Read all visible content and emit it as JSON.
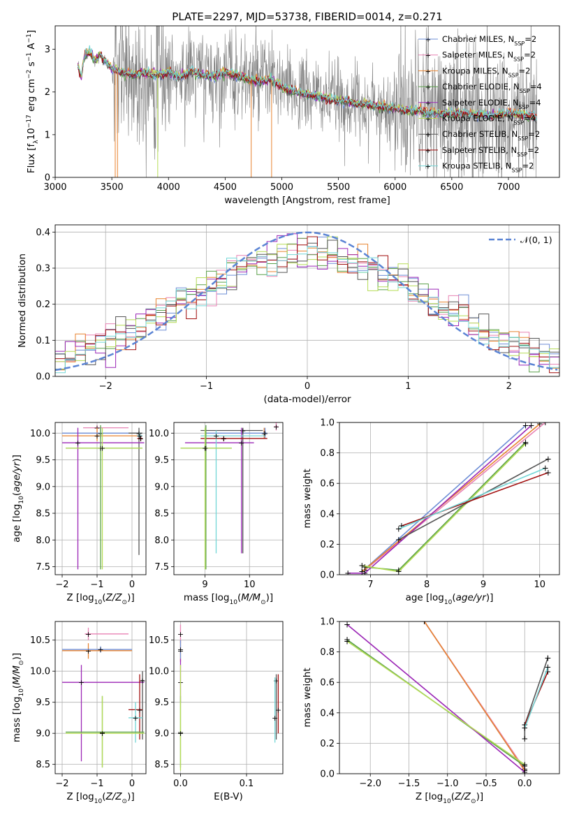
{
  "figure_title": "PLATE=2297, MJD=53738, FIBERID=0014, z=0.271",
  "models": [
    {
      "name": "Chabrier MILES",
      "nssp": "2",
      "color": "#6d8dd6"
    },
    {
      "name": "Salpeter MILES",
      "nssp": "2",
      "color": "#e882b4"
    },
    {
      "name": "Kroupa MILES",
      "nssp": "2",
      "color": "#e8832f"
    },
    {
      "name": "Chabrier ELODIE",
      "nssp": "4",
      "color": "#5aa04a"
    },
    {
      "name": "Salpeter ELODIE",
      "nssp": "4",
      "color": "#9b26b6"
    },
    {
      "name": "Kroupa ELODIE",
      "nssp": "4",
      "color": "#b5dc56"
    },
    {
      "name": "Chabrier STELIB",
      "nssp": "2",
      "color": "#555555"
    },
    {
      "name": "Salpeter STELIB",
      "nssp": "2",
      "color": "#a00c0c"
    },
    {
      "name": "Kroupa STELIB",
      "nssp": "2",
      "color": "#72d6d6"
    }
  ],
  "chart_data": [
    {
      "id": "spectrum",
      "type": "line",
      "xlabel": "wavelength [Angstrom, rest frame]",
      "ylabel": "Flux [f_λ 10^-17 erg cm^-2 s^-1 A^-1]",
      "xlim": [
        3000,
        7450
      ],
      "ylim": [
        0,
        3.55
      ],
      "xticks": [
        3000,
        3500,
        4000,
        4500,
        5000,
        5500,
        6000,
        6500,
        7000
      ],
      "yticks": [
        0,
        1,
        2,
        3
      ],
      "grid": false,
      "legend_position": "top-right",
      "observed_color": "#808080",
      "continuum": {
        "x": [
          3200,
          3230,
          3260,
          3300,
          3350,
          3400,
          3500,
          3600,
          3700,
          3800,
          3900,
          4000,
          4100,
          4200,
          4300,
          4400,
          4500,
          4600,
          4700,
          4800,
          4900,
          5000,
          5200,
          5400,
          5600,
          5800,
          6000,
          6200,
          6400,
          6600,
          6800,
          7000,
          7200,
          7250
        ],
        "y": [
          2.6,
          2.35,
          2.85,
          2.95,
          2.75,
          2.85,
          2.55,
          2.45,
          2.4,
          2.45,
          2.4,
          2.45,
          2.35,
          2.5,
          2.4,
          2.35,
          2.45,
          2.4,
          2.3,
          2.25,
          2.3,
          2.1,
          1.95,
          1.85,
          1.75,
          1.7,
          1.6,
          1.55,
          1.5,
          1.5,
          1.45,
          1.5,
          1.45,
          1.4
        ]
      }
    },
    {
      "id": "residuals",
      "type": "line",
      "xlabel": "(data-model)/error",
      "ylabel": "Normed distribution",
      "xlim": [
        -2.5,
        2.5
      ],
      "ylim": [
        0,
        0.42
      ],
      "xticks": [
        -2,
        -1,
        0,
        1,
        2
      ],
      "yticks": [
        0.0,
        0.1,
        0.2,
        0.3,
        0.4
      ],
      "grid": true,
      "legend_position": "top-right",
      "reference_curve": {
        "label": "𝒩(0, 1)",
        "color": "#5b84d4",
        "mean": 0,
        "sigma": 1
      }
    },
    {
      "id": "age_vs_Z",
      "type": "scatter",
      "xlabel": "Z [log10(Z/Z⊙)]",
      "ylabel": "age [log10(age/yr)]",
      "xlim": [
        -2.2,
        0.4
      ],
      "ylim": [
        7.35,
        10.2
      ],
      "xticks": [
        -2,
        -1,
        0
      ],
      "yticks": [
        7.5,
        8.0,
        8.5,
        9.0,
        9.5,
        10.0
      ],
      "grid": true,
      "errorbars": [
        {
          "c": "#e882b4",
          "x": -1.0,
          "xe": [
            -1.4,
            -0.1
          ],
          "y": 10.1,
          "ye": [
            10.0,
            10.15
          ]
        },
        {
          "c": "#e8832f",
          "x": -1.0,
          "xe": [
            -2.0,
            0.15
          ],
          "y": 9.95,
          "ye": [
            9.85,
            10.1
          ]
        },
        {
          "c": "#6d8dd6",
          "x": -0.9,
          "xe": [
            -2.0,
            0.2
          ],
          "y": 10.0,
          "ye": [
            9.9,
            10.1
          ]
        },
        {
          "c": "#555555",
          "x": 0.2,
          "xe": [
            -0.1,
            0.3
          ],
          "y": 10.0,
          "ye": [
            7.72,
            10.1
          ]
        },
        {
          "c": "#9b26b6",
          "x": -1.55,
          "xe": [
            -2.0,
            0.35
          ],
          "y": 9.82,
          "ye": [
            7.45,
            10.1
          ]
        },
        {
          "c": "#a00c0c",
          "x": 0.25,
          "xe": [
            0.15,
            0.3
          ],
          "y": 9.9,
          "ye": [
            9.85,
            9.95
          ]
        },
        {
          "c": "#72d6d6",
          "x": 0.22,
          "xe": [
            0.15,
            0.3
          ],
          "y": 9.95,
          "ye": [
            9.9,
            10.0
          ]
        },
        {
          "c": "#5aa04a",
          "x": -0.9,
          "xe": [
            -1.9,
            0.3
          ],
          "y": 9.72,
          "ye": [
            7.45,
            10.15
          ]
        },
        {
          "c": "#b5dc56",
          "x": -0.85,
          "xe": [
            -1.9,
            0.3
          ],
          "y": 9.72,
          "ye": [
            7.45,
            10.1
          ]
        }
      ]
    },
    {
      "id": "age_vs_mass",
      "type": "scatter",
      "xlabel": "mass [log10(M/M⊙)]",
      "ylabel": "",
      "xlim": [
        8.3,
        10.75
      ],
      "ylim": [
        7.35,
        10.2
      ],
      "xticks": [
        9,
        10
      ],
      "yticks": [
        7.5,
        8.0,
        8.5,
        9.0,
        9.5,
        10.0
      ],
      "grid": true,
      "errorbars": [
        {
          "c": "#e882b4",
          "x": 10.6,
          "xe": [
            10.55,
            10.65
          ],
          "y": 10.12,
          "ye": [
            10.05,
            10.2
          ]
        },
        {
          "c": "#e8832f",
          "x": 10.33,
          "xe": [
            10.3,
            10.38
          ],
          "y": 10.0,
          "ye": [
            9.9,
            10.1
          ]
        },
        {
          "c": "#6d8dd6",
          "x": 10.35,
          "xe": [
            9.0,
            10.4
          ],
          "y": 10.0,
          "ye": [
            9.9,
            10.1
          ]
        },
        {
          "c": "#555555",
          "x": 9.85,
          "xe": [
            8.9,
            10.3
          ],
          "y": 10.05,
          "ye": [
            7.75,
            10.1
          ]
        },
        {
          "c": "#9b26b6",
          "x": 9.82,
          "xe": [
            8.55,
            10.1
          ],
          "y": 9.82,
          "ye": [
            7.75,
            10.1
          ]
        },
        {
          "c": "#a00c0c",
          "x": 9.42,
          "xe": [
            8.9,
            10.4
          ],
          "y": 9.9,
          "ye": [
            9.85,
            9.95
          ]
        },
        {
          "c": "#72d6d6",
          "x": 9.25,
          "xe": [
            8.9,
            10.35
          ],
          "y": 9.95,
          "ye": [
            7.75,
            10.05
          ]
        },
        {
          "c": "#5aa04a",
          "x": 9.02,
          "xe": [
            8.45,
            9.6
          ],
          "y": 9.72,
          "ye": [
            7.45,
            10.15
          ]
        },
        {
          "c": "#b5dc56",
          "x": 9.0,
          "xe": [
            8.45,
            9.6
          ],
          "y": 9.72,
          "ye": [
            7.45,
            10.1
          ]
        }
      ]
    },
    {
      "id": "massweight_vs_age",
      "type": "line",
      "xlabel": "age [log10(age/yr)]",
      "ylabel": "mass weight",
      "xlim": [
        6.45,
        10.35
      ],
      "ylim": [
        0,
        1.0
      ],
      "xticks": [
        7,
        8,
        9,
        10
      ],
      "yticks": [
        0.0,
        0.2,
        0.4,
        0.6,
        0.8,
        1.0
      ],
      "grid": true,
      "series": [
        {
          "c": "#6d8dd6",
          "x": [
            6.85,
            9.75
          ],
          "y": [
            0.02,
            0.98
          ]
        },
        {
          "c": "#e882b4",
          "x": [
            6.9,
            10.1
          ],
          "y": [
            0.03,
            1.0
          ]
        },
        {
          "c": "#e8832f",
          "x": [
            6.85,
            10.0
          ],
          "y": [
            0.02,
            0.99
          ]
        },
        {
          "c": "#5aa04a",
          "x": [
            6.9,
            7.5,
            9.75
          ],
          "y": [
            0.05,
            0.03,
            0.87
          ]
        },
        {
          "c": "#9b26b6",
          "x": [
            6.6,
            6.9,
            9.85
          ],
          "y": [
            0.01,
            0.01,
            0.98
          ]
        },
        {
          "c": "#b5dc56",
          "x": [
            6.85,
            7.5,
            9.75
          ],
          "y": [
            0.06,
            0.02,
            0.86
          ]
        },
        {
          "c": "#555555",
          "x": [
            7.5,
            10.15
          ],
          "y": [
            0.23,
            0.76
          ]
        },
        {
          "c": "#a00c0c",
          "x": [
            7.55,
            10.15
          ],
          "y": [
            0.32,
            0.67
          ]
        },
        {
          "c": "#72d6d6",
          "x": [
            7.5,
            10.1
          ],
          "y": [
            0.3,
            0.7
          ]
        }
      ]
    },
    {
      "id": "mass_vs_Z",
      "type": "scatter",
      "xlabel": "Z [log10(Z/Z⊙)]",
      "ylabel": "mass [log10(M/M⊙)]",
      "xlim": [
        -2.2,
        0.4
      ],
      "ylim": [
        8.35,
        10.8
      ],
      "xticks": [
        -2,
        -1,
        0
      ],
      "yticks": [
        8.5,
        9.0,
        9.5,
        10.0,
        10.5
      ],
      "grid": true,
      "errorbars": [
        {
          "c": "#e882b4",
          "x": -1.25,
          "xe": [
            -1.35,
            -0.1
          ],
          "y": 10.6,
          "ye": [
            10.5,
            10.7
          ]
        },
        {
          "c": "#e8832f",
          "x": -1.25,
          "xe": [
            -2.0,
            0.0
          ],
          "y": 10.33,
          "ye": [
            10.2,
            10.45
          ]
        },
        {
          "c": "#6d8dd6",
          "x": -0.9,
          "xe": [
            -2.0,
            0.0
          ],
          "y": 10.35,
          "ye": [
            10.3,
            10.4
          ]
        },
        {
          "c": "#9b26b6",
          "x": -1.45,
          "xe": [
            -2.0,
            0.35
          ],
          "y": 9.82,
          "ye": [
            8.55,
            10.1
          ]
        },
        {
          "c": "#555555",
          "x": 0.3,
          "xe": [
            0.25,
            0.35
          ],
          "y": 9.85,
          "ye": [
            8.9,
            10.0
          ]
        },
        {
          "c": "#a00c0c",
          "x": 0.22,
          "xe": [
            -0.1,
            0.3
          ],
          "y": 9.38,
          "ye": [
            8.9,
            9.95
          ]
        },
        {
          "c": "#72d6d6",
          "x": 0.1,
          "xe": [
            -0.1,
            0.3
          ],
          "y": 9.25,
          "ye": [
            8.85,
            9.5
          ]
        },
        {
          "c": "#5aa04a",
          "x": -0.85,
          "xe": [
            -1.9,
            0.35
          ],
          "y": 9.02,
          "ye": [
            8.45,
            9.6
          ]
        },
        {
          "c": "#b5dc56",
          "x": -0.85,
          "xe": [
            -1.9,
            0.35
          ],
          "y": 9.0,
          "ye": [
            8.45,
            9.6
          ]
        }
      ]
    },
    {
      "id": "mass_vs_ebv",
      "type": "scatter",
      "xlabel": "E(B-V)",
      "ylabel": "",
      "xlim": [
        -0.01,
        0.155
      ],
      "ylim": [
        8.35,
        10.8
      ],
      "xticks": [
        0.0,
        0.1
      ],
      "yticks": [
        8.5,
        9.0,
        9.5,
        10.0,
        10.5
      ],
      "grid": true,
      "errorbars": [
        {
          "c": "#e882b4",
          "x": 0.0,
          "y": 10.6,
          "ye": [
            10.45,
            10.75
          ]
        },
        {
          "c": "#e8832f",
          "x": 0.0,
          "y": 10.33,
          "ye": [
            10.15,
            10.5
          ]
        },
        {
          "c": "#6d8dd6",
          "x": 0.0,
          "y": 10.35,
          "ye": [
            10.2,
            10.5
          ]
        },
        {
          "c": "#9b26b6",
          "x": 0.0,
          "y": 9.82,
          "ye": [
            9.5,
            10.2
          ]
        },
        {
          "c": "#5aa04a",
          "x": 0.0,
          "y": 9.02,
          "ye": [
            8.45,
            9.6
          ]
        },
        {
          "c": "#b5dc56",
          "x": 0.0,
          "y": 9.0,
          "ye": [
            8.4,
            10.1
          ]
        },
        {
          "c": "#555555",
          "x": 0.145,
          "y": 9.85,
          "ye": [
            8.9,
            9.95
          ]
        },
        {
          "c": "#a00c0c",
          "x": 0.148,
          "y": 9.38,
          "ye": [
            9.0,
            9.95
          ]
        },
        {
          "c": "#72d6d6",
          "x": 0.143,
          "y": 9.25,
          "ye": [
            8.85,
            9.9
          ]
        }
      ]
    },
    {
      "id": "massweight_vs_Z",
      "type": "line",
      "xlabel": "Z [log10(Z/Z⊙)]",
      "ylabel": "mass weight",
      "xlim": [
        -2.4,
        0.45
      ],
      "ylim": [
        0,
        1.0
      ],
      "xticks": [
        -2.0,
        -1.5,
        -1.0,
        -0.5,
        0.0
      ],
      "yticks": [
        0.0,
        0.2,
        0.4,
        0.6,
        0.8,
        1.0
      ],
      "grid": true,
      "series": [
        {
          "c": "#6d8dd6",
          "x": [
            -1.3,
            0.0
          ],
          "y": [
            1.0,
            0.02
          ]
        },
        {
          "c": "#e882b4",
          "x": [
            -1.3,
            0.0
          ],
          "y": [
            1.0,
            0.03
          ]
        },
        {
          "c": "#e8832f",
          "x": [
            -1.3,
            0.0
          ],
          "y": [
            1.0,
            0.02
          ]
        },
        {
          "c": "#5aa04a",
          "x": [
            -2.3,
            0.0
          ],
          "y": [
            0.88,
            0.05
          ]
        },
        {
          "c": "#9b26b6",
          "x": [
            -2.3,
            0.0
          ],
          "y": [
            0.98,
            0.01
          ]
        },
        {
          "c": "#b5dc56",
          "x": [
            -2.3,
            0.0
          ],
          "y": [
            0.87,
            0.06
          ]
        },
        {
          "c": "#555555",
          "x": [
            0.0,
            0.0,
            0.3,
            0.3
          ],
          "y": [
            0.23,
            0.32,
            0.76,
            0.76
          ]
        },
        {
          "c": "#a00c0c",
          "x": [
            0.0,
            0.3
          ],
          "y": [
            0.32,
            0.67
          ]
        },
        {
          "c": "#72d6d6",
          "x": [
            0.0,
            0.3
          ],
          "y": [
            0.3,
            0.7
          ]
        }
      ]
    }
  ]
}
